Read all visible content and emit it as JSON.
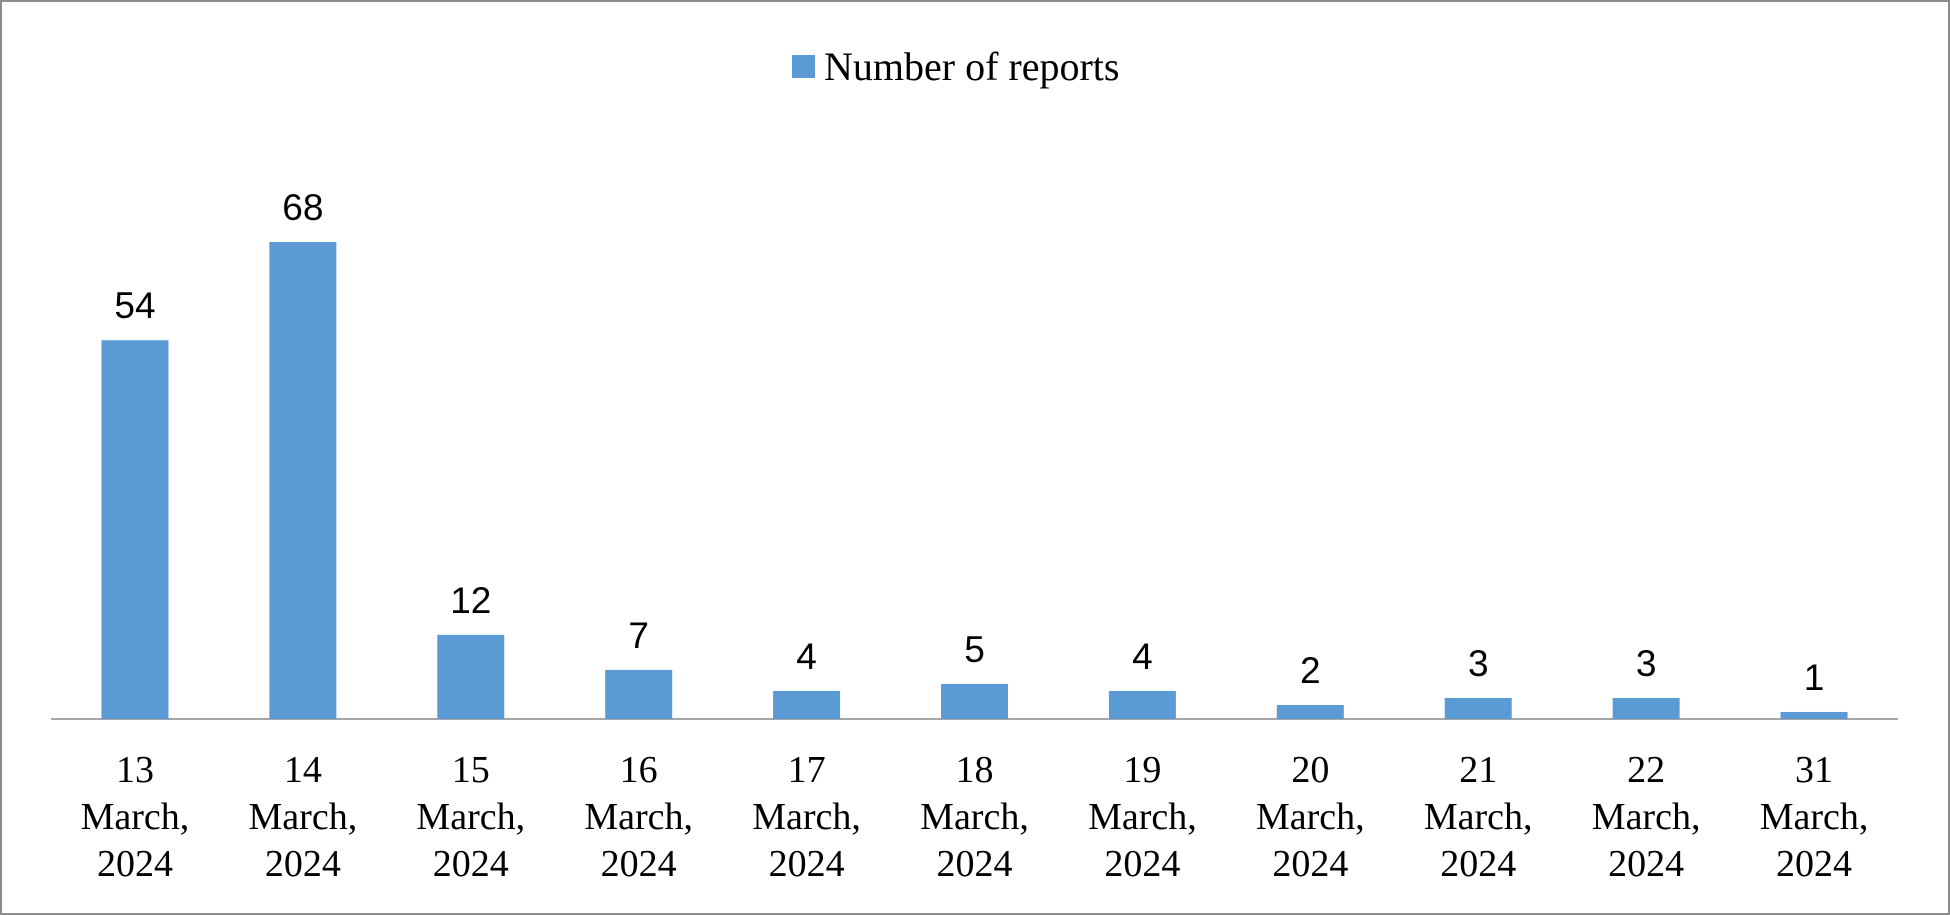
{
  "chart_data": {
    "type": "bar",
    "categories": [
      "13 March, 2024",
      "14 March, 2024",
      "15 March, 2024",
      "16 March, 2024",
      "17 March, 2024",
      "18 March, 2024",
      "19 March, 2024",
      "20 March, 2024",
      "21 March, 2024",
      "22 March, 2024",
      "31 March, 2024"
    ],
    "series": [
      {
        "name": "Number of reports",
        "color": "#5b9bd5",
        "values": [
          54,
          68,
          12,
          7,
          4,
          5,
          4,
          2,
          3,
          3,
          1
        ]
      }
    ],
    "legend": "top"
  }
}
